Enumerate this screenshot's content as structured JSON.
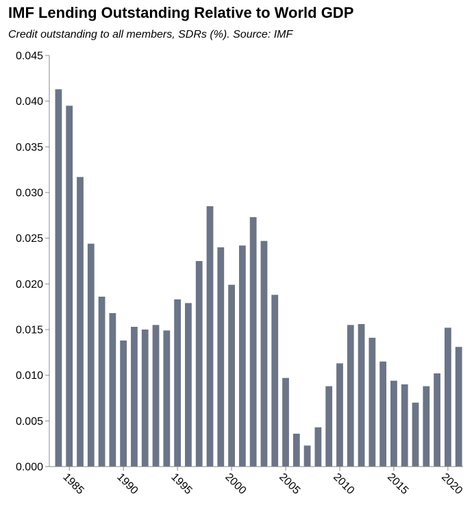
{
  "chart_data": {
    "type": "bar",
    "title": "IMF Lending Outstanding Relative to World GDP",
    "subtitle": "Credit outstanding to all members, SDRs (%). Source: IMF",
    "xlabel": "",
    "ylabel": "",
    "ylim": [
      0,
      0.045
    ],
    "yticks": [
      "0.000",
      "0.005",
      "0.010",
      "0.015",
      "0.020",
      "0.025",
      "0.030",
      "0.035",
      "0.040",
      "0.045"
    ],
    "xticks": [
      "1985",
      "1990",
      "1995",
      "2000",
      "2005",
      "2010",
      "2015",
      "2020"
    ],
    "grid": false,
    "bar_color": "#6b7587",
    "categories": [
      1984,
      1985,
      1986,
      1987,
      1988,
      1989,
      1990,
      1991,
      1992,
      1993,
      1994,
      1995,
      1996,
      1997,
      1998,
      1999,
      2000,
      2001,
      2002,
      2003,
      2004,
      2005,
      2006,
      2007,
      2008,
      2009,
      2010,
      2011,
      2012,
      2013,
      2014,
      2015,
      2016,
      2017,
      2018,
      2019,
      2020,
      2021
    ],
    "values": [
      0.0413,
      0.0395,
      0.0317,
      0.0244,
      0.0186,
      0.0168,
      0.0138,
      0.0153,
      0.015,
      0.0155,
      0.0149,
      0.0183,
      0.0179,
      0.0225,
      0.0285,
      0.024,
      0.0199,
      0.0242,
      0.0273,
      0.0247,
      0.0188,
      0.0097,
      0.0036,
      0.0023,
      0.0043,
      0.0088,
      0.0113,
      0.0155,
      0.0156,
      0.0141,
      0.0115,
      0.0094,
      0.009,
      0.007,
      0.0088,
      0.0102,
      0.0152,
      0.0131
    ]
  }
}
